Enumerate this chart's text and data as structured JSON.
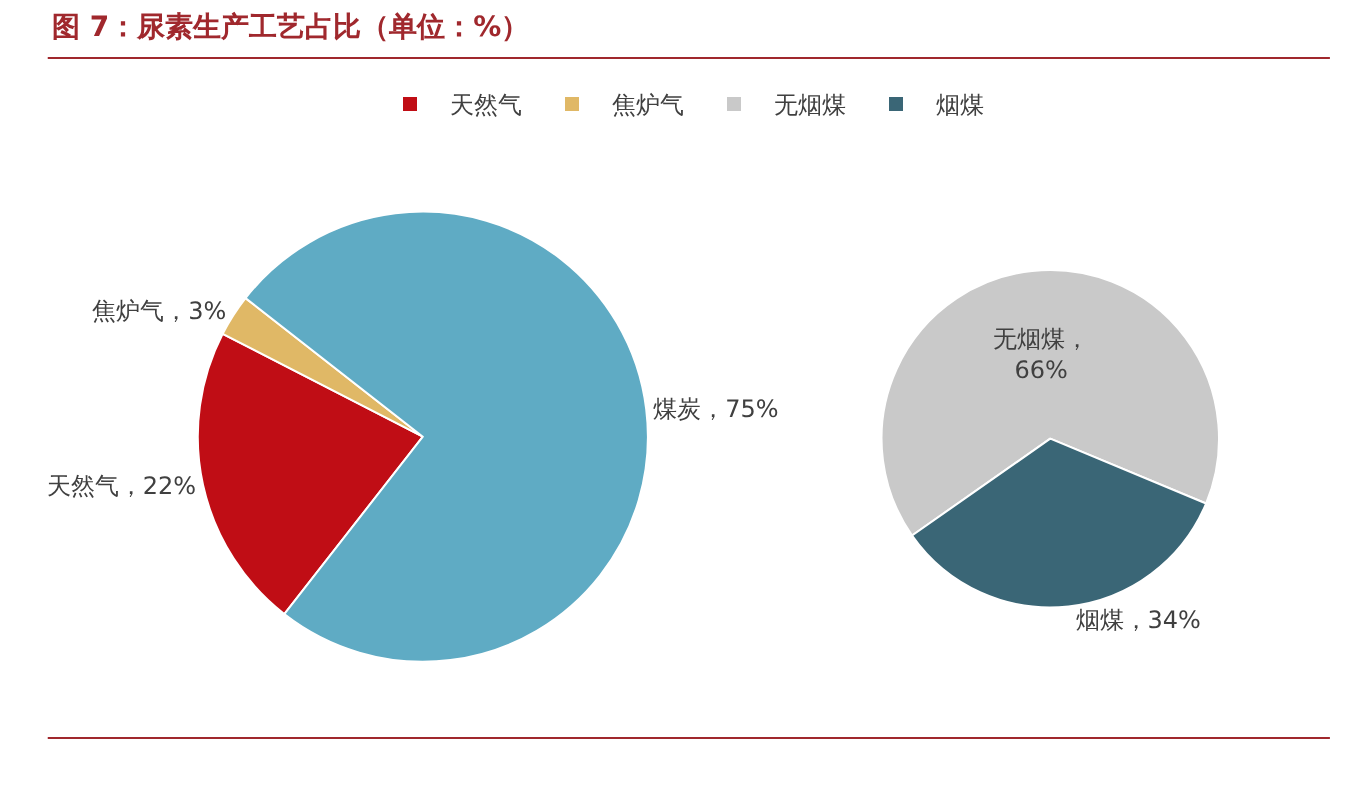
{
  "chart_data": [
    {
      "type": "pie",
      "title": "图 7：尿素生产工艺占比（单位：%）",
      "categories": [
        "天然气",
        "焦炉气",
        "煤炭"
      ],
      "values": [
        22,
        3,
        75
      ],
      "colors": [
        "#c00d15",
        "#e0b866",
        "#5fabc4"
      ],
      "value_labels": [
        "，22%",
        "，3%",
        "，75%"
      ],
      "legend": "top"
    },
    {
      "type": "pie",
      "categories": [
        "无烟煤",
        "烟煤"
      ],
      "values": [
        66,
        34
      ],
      "colors": [
        "#c9c9c9",
        "#3a6676"
      ],
      "value_labels": [
        "，66%",
        "，34%"
      ],
      "legend": "top"
    }
  ]
}
